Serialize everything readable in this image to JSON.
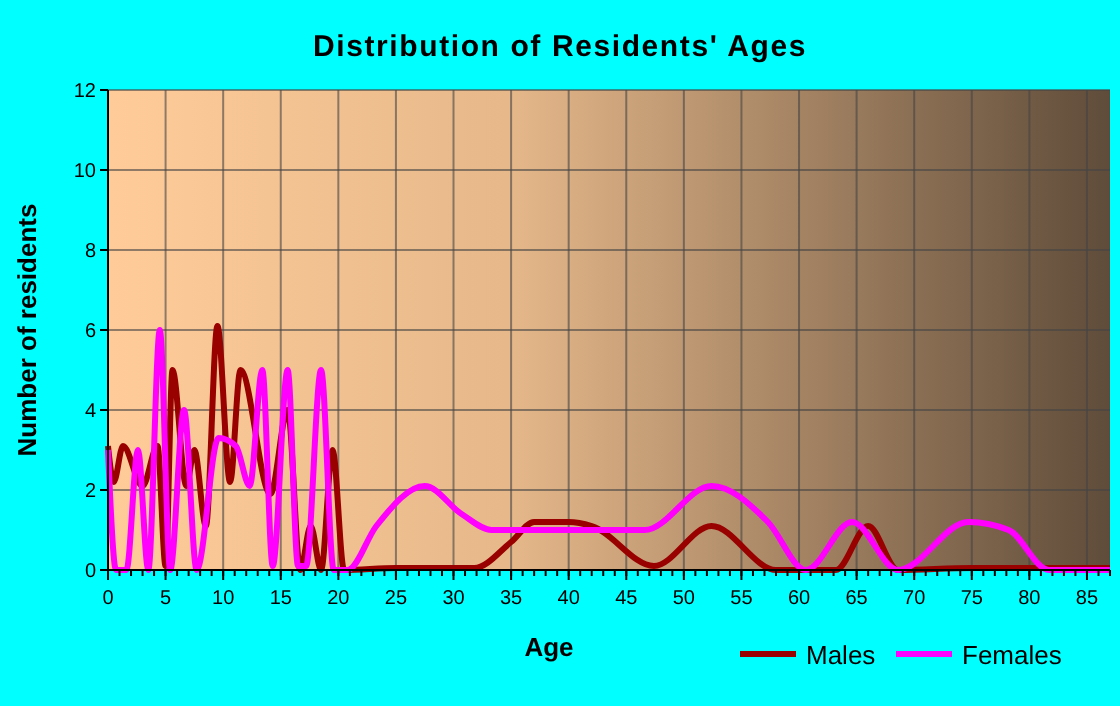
{
  "chart_data": {
    "type": "line",
    "title": "Distribution of Residents' Ages",
    "xlabel": "Age",
    "ylabel": "Number of residents",
    "xlim": [
      0,
      87
    ],
    "ylim": [
      0,
      12
    ],
    "xticks": [
      0,
      5,
      10,
      15,
      20,
      25,
      30,
      35,
      40,
      45,
      50,
      55,
      60,
      65,
      70,
      75,
      80,
      85
    ],
    "yticks": [
      0,
      2,
      4,
      6,
      8,
      10,
      12
    ],
    "grid": true,
    "legend": "bottom right",
    "line_style": "solid",
    "series": [
      {
        "name": "Males",
        "color": "#990000",
        "x": [
          0,
          0.5,
          1.3,
          3,
          4.3,
          5,
          5.6,
          6.8,
          7.5,
          8.5,
          9.5,
          10.6,
          11.5,
          14.1,
          15.6,
          16.7,
          17.6,
          18.5,
          19.5,
          20.5,
          25,
          31.8,
          35,
          37,
          40,
          42,
          47.4,
          52.4,
          58,
          63.2,
          66,
          68.6,
          75,
          87
        ],
        "values": [
          3.1,
          2.2,
          3.1,
          2.1,
          3.1,
          0.1,
          5,
          2.1,
          3,
          1.1,
          6.1,
          2.2,
          5,
          1.9,
          4,
          0,
          1.1,
          0,
          3,
          0,
          0.05,
          0.05,
          0.7,
          1.2,
          1.2,
          1.1,
          0.1,
          1.1,
          0,
          0,
          1.1,
          0,
          0.05,
          0.05
        ]
      },
      {
        "name": "Females",
        "color": "#ff00ff",
        "x": [
          0,
          0.7,
          1.6,
          2.6,
          3.5,
          4.5,
          5.4,
          6.6,
          7.7,
          9.6,
          11.1,
          12.3,
          13.4,
          14.3,
          15.6,
          16.5,
          17.2,
          18.5,
          19.6,
          20.8,
          23.3,
          27.5,
          30.7,
          33.3,
          46.6,
          52.4,
          57.3,
          60.6,
          64.6,
          68.6,
          74.7,
          78.2,
          81.7,
          87
        ],
        "values": [
          3,
          0,
          0,
          3,
          0,
          6,
          0,
          4,
          0,
          3.3,
          3.1,
          2.1,
          5,
          0.1,
          5,
          0.1,
          0.1,
          5,
          0,
          0,
          1.1,
          2.1,
          1.4,
          1,
          1,
          2.1,
          1.2,
          0,
          1.2,
          0,
          1.2,
          1,
          0,
          0
        ]
      }
    ]
  }
}
